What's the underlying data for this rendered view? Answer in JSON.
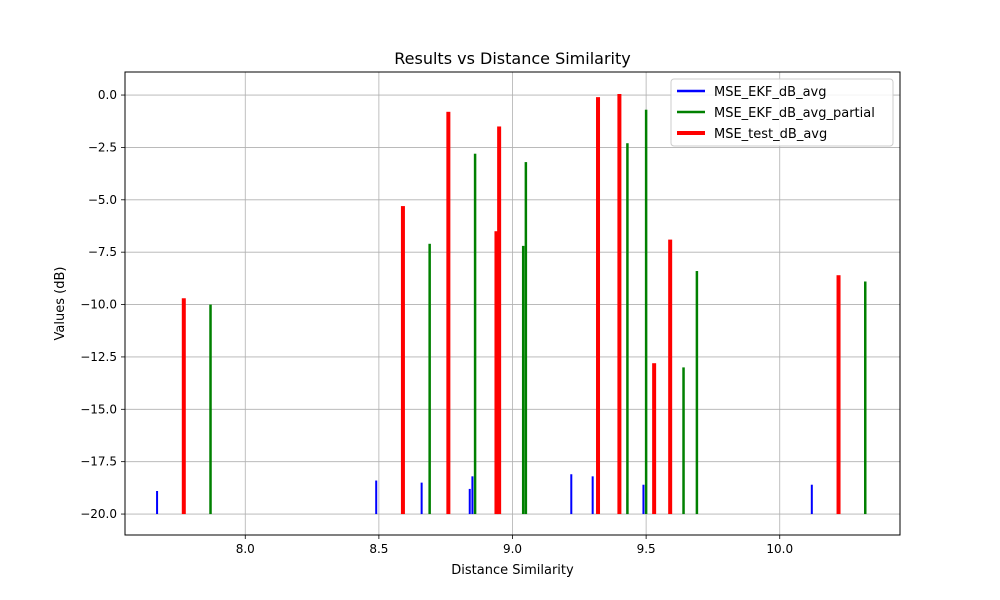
{
  "chart_data": {
    "type": "bar",
    "title": "Results vs Distance Similarity",
    "xlabel": "Distance Similarity",
    "ylabel": "Values (dB)",
    "xlim": [
      7.55,
      10.45
    ],
    "ylim": [
      -21.0,
      1.1
    ],
    "x_ticks": [
      8.0,
      8.5,
      9.0,
      9.5,
      10.0
    ],
    "x_tick_labels": [
      "8.0",
      "8.5",
      "9.0",
      "9.5",
      "10.0"
    ],
    "y_ticks": [
      0.0,
      -2.5,
      -5.0,
      -7.5,
      -10.0,
      -12.5,
      -15.0,
      -17.5,
      -20.0
    ],
    "y_tick_labels": [
      "0.0",
      "−2.5",
      "−5.0",
      "−7.5",
      "−10.0",
      "−12.5",
      "−15.0",
      "−17.5",
      "−20.0"
    ],
    "baseline": -20.0,
    "grid": true,
    "legend_position": "top-right",
    "series": [
      {
        "name": "MSE_EKF_dB_avg",
        "color": "#0000ff",
        "points": [
          {
            "x": 7.67,
            "y": -18.9
          },
          {
            "x": 8.49,
            "y": -18.4
          },
          {
            "x": 8.66,
            "y": -18.5
          },
          {
            "x": 8.84,
            "y": -18.8
          },
          {
            "x": 8.85,
            "y": -18.2
          },
          {
            "x": 9.22,
            "y": -18.1
          },
          {
            "x": 9.3,
            "y": -18.2
          },
          {
            "x": 9.43,
            "y": -19.0
          },
          {
            "x": 9.49,
            "y": -18.6
          },
          {
            "x": 10.12,
            "y": -18.6
          }
        ]
      },
      {
        "name": "MSE_EKF_dB_avg_partial",
        "color": "#008000",
        "points": [
          {
            "x": 7.87,
            "y": -10.0
          },
          {
            "x": 8.69,
            "y": -7.1
          },
          {
            "x": 8.86,
            "y": -2.8
          },
          {
            "x": 9.04,
            "y": -7.2
          },
          {
            "x": 9.05,
            "y": -3.2
          },
          {
            "x": 9.43,
            "y": -2.3
          },
          {
            "x": 9.5,
            "y": -0.7
          },
          {
            "x": 9.64,
            "y": -13.0
          },
          {
            "x": 9.69,
            "y": -8.4
          },
          {
            "x": 10.32,
            "y": -8.9
          }
        ]
      },
      {
        "name": "MSE_test_dB_avg",
        "color": "#ff0000",
        "points": [
          {
            "x": 7.77,
            "y": -9.7
          },
          {
            "x": 8.59,
            "y": -5.3
          },
          {
            "x": 8.76,
            "y": -0.8
          },
          {
            "x": 8.94,
            "y": -6.5
          },
          {
            "x": 8.95,
            "y": -1.5
          },
          {
            "x": 9.32,
            "y": -0.1
          },
          {
            "x": 9.4,
            "y": 0.05
          },
          {
            "x": 9.53,
            "y": -12.8
          },
          {
            "x": 9.59,
            "y": -6.9
          },
          {
            "x": 10.22,
            "y": -8.6
          }
        ]
      }
    ]
  }
}
